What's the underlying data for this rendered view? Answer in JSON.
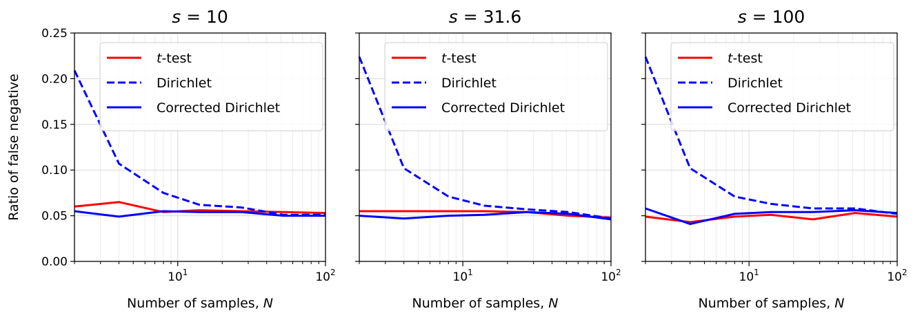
{
  "figure": {
    "ylabel": "Ratio of false negative"
  },
  "chart_data": [
    {
      "type": "line",
      "title_prefix": "s",
      "title_value": "10",
      "xlabel": "Number of samples, ",
      "xlabel_var": "N",
      "x_scale": "log",
      "xlim": [
        2,
        100
      ],
      "ylim": [
        0,
        0.25
      ],
      "yticks": [
        "0.00",
        "0.05",
        "0.10",
        "0.15",
        "0.20",
        "0.25"
      ],
      "xticks": [
        {
          "base": "10",
          "exp": "1",
          "value": 10
        },
        {
          "base": "10",
          "exp": "2",
          "value": 100
        }
      ],
      "grid": true,
      "legend": "top-right",
      "series": [
        {
          "name": "t-test",
          "name_italic": "t",
          "name_rest": "-test",
          "color": "#ff0000",
          "dash": "solid",
          "x": [
            2,
            4,
            8,
            14,
            27,
            52,
            100
          ],
          "y": [
            0.06,
            0.065,
            0.054,
            0.056,
            0.055,
            0.054,
            0.053
          ]
        },
        {
          "name": "Dirichlet",
          "color": "#0000ff",
          "dash": "dashed",
          "x": [
            2,
            4,
            8,
            14,
            27,
            52,
            100
          ],
          "y": [
            0.209,
            0.107,
            0.075,
            0.062,
            0.059,
            0.051,
            0.051
          ]
        },
        {
          "name": "Corrected Dirichlet",
          "color": "#0000ff",
          "dash": "solid",
          "x": [
            2,
            4,
            8,
            14,
            27,
            52,
            100
          ],
          "y": [
            0.055,
            0.049,
            0.055,
            0.054,
            0.054,
            0.05,
            0.05
          ]
        }
      ]
    },
    {
      "type": "line",
      "title_prefix": "s",
      "title_value": "31.6",
      "xlabel": "Number of samples, ",
      "xlabel_var": "N",
      "x_scale": "log",
      "xlim": [
        2,
        100
      ],
      "ylim": [
        0,
        0.25
      ],
      "yticks": [],
      "xticks": [
        {
          "base": "10",
          "exp": "1",
          "value": 10
        },
        {
          "base": "10",
          "exp": "2",
          "value": 100
        }
      ],
      "grid": true,
      "legend": "top-right",
      "series": [
        {
          "name": "t-test",
          "name_italic": "t",
          "name_rest": "-test",
          "color": "#ff0000",
          "dash": "solid",
          "x": [
            2,
            4,
            8,
            14,
            27,
            52,
            100
          ],
          "y": [
            0.055,
            0.055,
            0.055,
            0.055,
            0.054,
            0.05,
            0.048
          ]
        },
        {
          "name": "Dirichlet",
          "color": "#0000ff",
          "dash": "dashed",
          "x": [
            2,
            4,
            8,
            14,
            27,
            52,
            100
          ],
          "y": [
            0.224,
            0.102,
            0.071,
            0.061,
            0.057,
            0.054,
            0.047
          ]
        },
        {
          "name": "Corrected Dirichlet",
          "color": "#0000ff",
          "dash": "solid",
          "x": [
            2,
            4,
            8,
            14,
            27,
            52,
            100
          ],
          "y": [
            0.05,
            0.047,
            0.05,
            0.051,
            0.054,
            0.052,
            0.046
          ]
        }
      ]
    },
    {
      "type": "line",
      "title_prefix": "s",
      "title_value": "100",
      "xlabel": "Number of samples, ",
      "xlabel_var": "N",
      "x_scale": "log",
      "xlim": [
        2,
        100
      ],
      "ylim": [
        0,
        0.25
      ],
      "yticks": [],
      "xticks": [
        {
          "base": "10",
          "exp": "1",
          "value": 10
        },
        {
          "base": "10",
          "exp": "2",
          "value": 100
        }
      ],
      "grid": true,
      "legend": "top-right",
      "series": [
        {
          "name": "t-test",
          "name_italic": "t",
          "name_rest": "-test",
          "color": "#ff0000",
          "dash": "solid",
          "x": [
            2,
            4,
            8,
            14,
            27,
            52,
            100
          ],
          "y": [
            0.049,
            0.043,
            0.049,
            0.051,
            0.046,
            0.053,
            0.049
          ]
        },
        {
          "name": "Dirichlet",
          "color": "#0000ff",
          "dash": "dashed",
          "x": [
            2,
            4,
            8,
            14,
            27,
            52,
            100
          ],
          "y": [
            0.224,
            0.102,
            0.071,
            0.063,
            0.058,
            0.058,
            0.052
          ]
        },
        {
          "name": "Corrected Dirichlet",
          "color": "#0000ff",
          "dash": "solid",
          "x": [
            2,
            4,
            8,
            14,
            27,
            52,
            100
          ],
          "y": [
            0.058,
            0.041,
            0.052,
            0.054,
            0.054,
            0.056,
            0.053
          ]
        }
      ]
    }
  ]
}
